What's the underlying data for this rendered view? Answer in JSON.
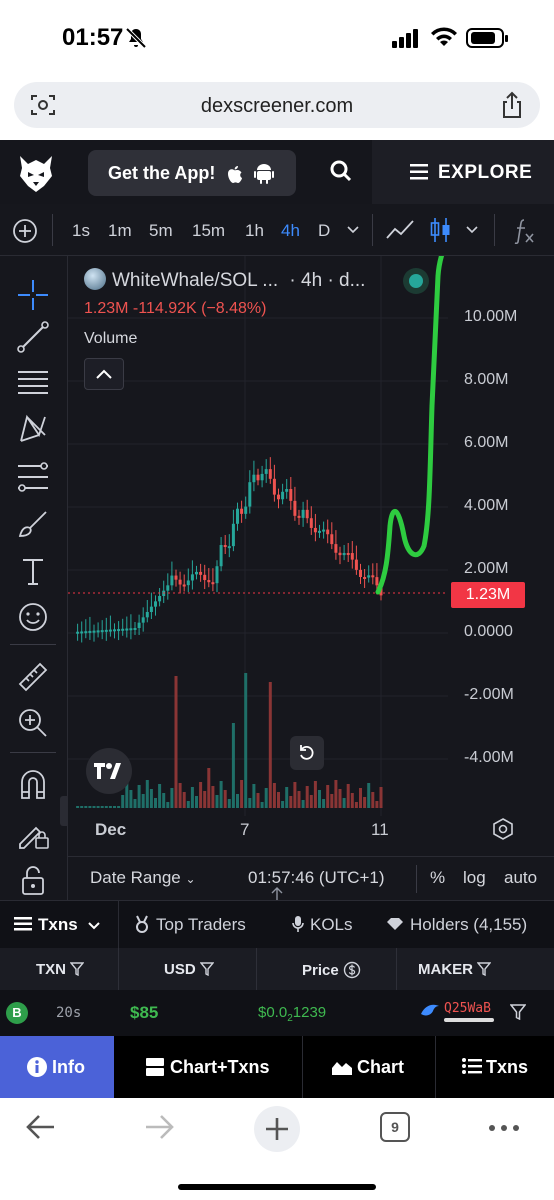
{
  "status_bar": {
    "time": "01:57"
  },
  "browser": {
    "url": "dexscreener.com",
    "tab_count": "9"
  },
  "site_header": {
    "get_app_label": "Get the App!",
    "explore_label": "EXPLORE"
  },
  "chart_toolbar": {
    "timeframes": [
      "1s",
      "1m",
      "5m",
      "15m",
      "1h",
      "4h",
      "D"
    ],
    "active_timeframe": "4h"
  },
  "legend": {
    "pair": "WhiteWhale/SOL ...",
    "interval": "· 4h · d...",
    "price_line": "1.23M  -114.92K (−8.48%)",
    "volume_label": "Volume"
  },
  "chart_data": {
    "type": "candlestick",
    "y_ticks": [
      "10.00M",
      "8.00M",
      "6.00M",
      "4.00M",
      "2.00M",
      "0.0000",
      "-2.00M",
      "-4.00M"
    ],
    "x_ticks": [
      "Dec",
      "7",
      "11"
    ],
    "current_price_label": "1.23M",
    "up_color": "#26a69a",
    "down_color": "#ef5350",
    "annotation_color": "#2ecc40"
  },
  "range_bar": {
    "date_range_label": "Date Range",
    "time_label": "01:57:46 (UTC+1)",
    "percent_label": "%",
    "log_label": "log",
    "auto_label": "auto"
  },
  "tabs": {
    "txns": "Txns",
    "top_traders": "Top Traders",
    "kols": "KOLs",
    "holders": "Holders (4,155)"
  },
  "table": {
    "headers": {
      "txn": "TXN",
      "usd": "USD",
      "price": "Price",
      "maker": "MAKER"
    },
    "row": {
      "type": "B",
      "age": "20s",
      "usd": "$85",
      "price_prefix": "$0.0",
      "price_sub": "2",
      "price_rest": "1239",
      "maker": "Q25WaB"
    }
  },
  "bottom_nav": {
    "info": "Info",
    "chart_txns": "Chart+Txns",
    "chart": "Chart",
    "txns": "Txns"
  }
}
